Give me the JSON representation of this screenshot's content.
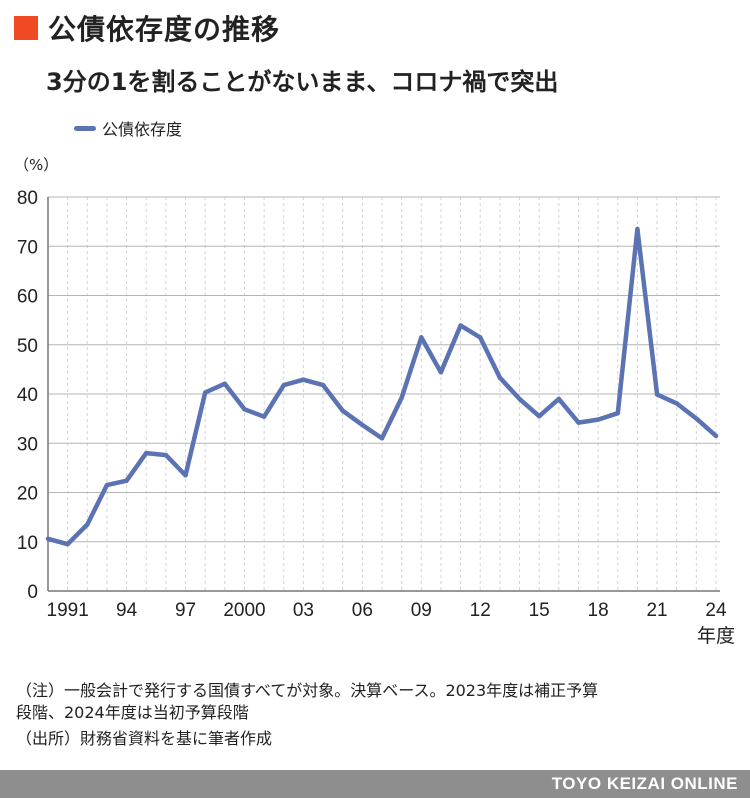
{
  "header": {
    "title": "公債依存度の推移",
    "subtitle": "3分の1を割ることがないまま、コロナ禍で突出",
    "accent_color": "#ef4a23"
  },
  "chart_data": {
    "type": "line",
    "unit_label": "（%）",
    "xlabel": "年度",
    "ylim": [
      0,
      80
    ],
    "y_ticks": [
      0,
      10,
      20,
      30,
      40,
      50,
      60,
      70,
      80
    ],
    "x_tick_labels": [
      {
        "year": 1991,
        "label": "1991"
      },
      {
        "year": 1994,
        "label": "94"
      },
      {
        "year": 1997,
        "label": "97"
      },
      {
        "year": 2000,
        "label": "2000"
      },
      {
        "year": 2003,
        "label": "03"
      },
      {
        "year": 2006,
        "label": "06"
      },
      {
        "year": 2009,
        "label": "09"
      },
      {
        "year": 2012,
        "label": "12"
      },
      {
        "year": 2015,
        "label": "15"
      },
      {
        "year": 2018,
        "label": "18"
      },
      {
        "year": 2021,
        "label": "21"
      },
      {
        "year": 2024,
        "label": "24"
      }
    ],
    "grid": true,
    "legend_position": "top-left",
    "series": [
      {
        "name": "公債依存度",
        "color": "#5b72b3",
        "x": [
          1990,
          1991,
          1992,
          1993,
          1994,
          1995,
          1996,
          1997,
          1998,
          1999,
          2000,
          2001,
          2002,
          2003,
          2004,
          2005,
          2006,
          2007,
          2008,
          2009,
          2010,
          2011,
          2012,
          2013,
          2014,
          2015,
          2016,
          2017,
          2018,
          2019,
          2020,
          2021,
          2022,
          2023,
          2024
        ],
        "values": [
          10.6,
          9.5,
          13.5,
          21.5,
          22.4,
          28.0,
          27.6,
          23.5,
          40.3,
          42.1,
          36.9,
          35.4,
          41.8,
          42.9,
          41.8,
          36.6,
          33.7,
          31.0,
          39.2,
          51.5,
          44.4,
          53.9,
          51.5,
          43.3,
          39.0,
          35.5,
          39.0,
          34.2,
          34.8,
          36.1,
          73.5,
          39.9,
          38.1,
          35.0,
          31.5
        ]
      }
    ]
  },
  "notes": {
    "line1": "（注）一般会計で発行する国債すべてが対象。決算ベース。2023年度は補正予算",
    "line2": "段階、2024年度は当初予算段階",
    "line3": "（出所）財務省資料を基に筆者作成"
  },
  "footer": {
    "brand": "TOYO KEIZAI ONLINE"
  }
}
